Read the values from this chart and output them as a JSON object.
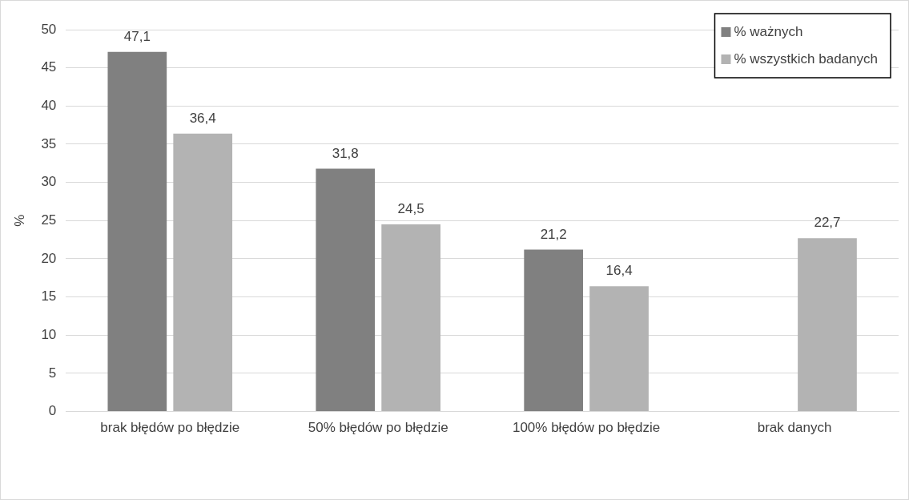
{
  "chart_data": {
    "type": "bar",
    "ylabel": "%",
    "categories": [
      "brak błędów po błędzie",
      "50% błędów po błędzie",
      "100% błędów po błędzie",
      "brak danych"
    ],
    "series": [
      {
        "name": "% ważnych",
        "color": "#808080",
        "values": [
          47.1,
          31.8,
          21.2,
          null
        ],
        "value_labels": [
          "47,1",
          "31,8",
          "21,2",
          null
        ]
      },
      {
        "name": "% wszystkich badanych",
        "color": "#b3b3b3",
        "values": [
          36.4,
          24.5,
          16.4,
          22.7
        ],
        "value_labels": [
          "36,4",
          "24,5",
          "16,4",
          "22,7"
        ]
      }
    ],
    "ylim": [
      0,
      50
    ],
    "yticks": [
      0,
      5,
      10,
      15,
      20,
      25,
      30,
      35,
      40,
      45,
      50
    ],
    "grid": "y",
    "legend": "top right"
  }
}
